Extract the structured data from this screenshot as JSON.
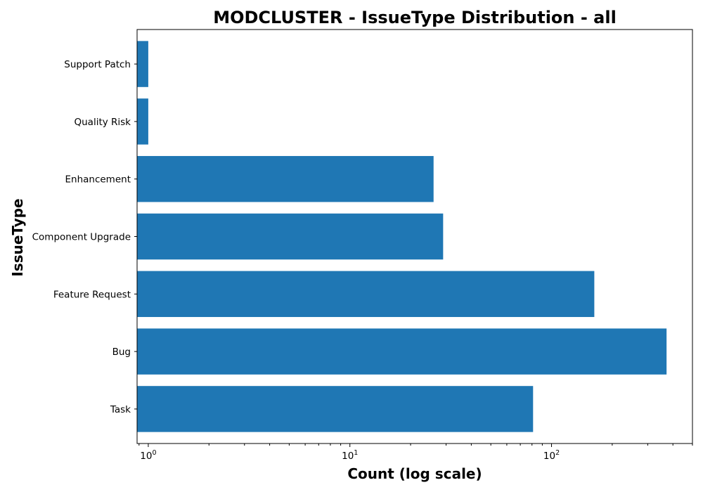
{
  "chart_data": {
    "type": "bar",
    "orientation": "horizontal",
    "title": "MODCLUSTER - IssueType Distribution - all",
    "xlabel": "Count (log scale)",
    "ylabel": "IssueType",
    "x_scale": "log",
    "xlim": [
      0.88,
      500
    ],
    "categories": [
      "Task",
      "Bug",
      "Feature Request",
      "Component Upgrade",
      "Enhancement",
      "Quality Risk",
      "Support Patch"
    ],
    "values": [
      81,
      372,
      163,
      29,
      26,
      1,
      1
    ],
    "bar_color": "#1f77b4",
    "grid": false,
    "legend": "none",
    "x_major_ticks": [
      {
        "base": "10",
        "exp": "0",
        "value": 1
      },
      {
        "base": "10",
        "exp": "1",
        "value": 10
      },
      {
        "base": "10",
        "exp": "2",
        "value": 100
      }
    ]
  }
}
